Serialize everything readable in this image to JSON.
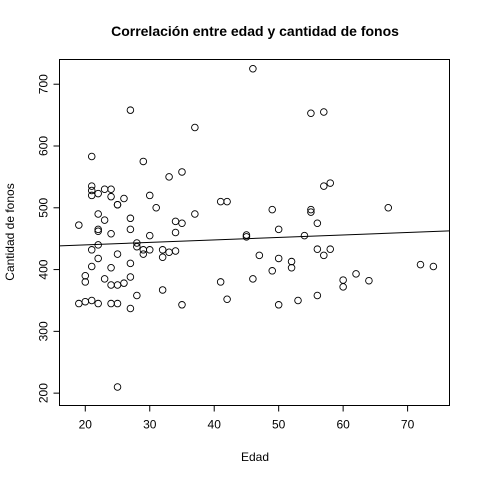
{
  "chart_data": {
    "type": "scatter",
    "title": "Correlación entre edad y cantidad de fonos",
    "xlabel": "Edad",
    "ylabel": "Cantidad de fonos",
    "xlim": [
      16,
      76.5
    ],
    "ylim": [
      180,
      740
    ],
    "x_ticks": [
      20,
      30,
      40,
      50,
      60,
      70
    ],
    "y_ticks": [
      200,
      300,
      400,
      500,
      600,
      700
    ],
    "grid": false,
    "legend": "none",
    "colors": {
      "points": "#000000",
      "line": "#000000",
      "frame": "#000000"
    },
    "points": [
      {
        "x": 19,
        "y": 472
      },
      {
        "x": 19,
        "y": 345
      },
      {
        "x": 20,
        "y": 390
      },
      {
        "x": 20,
        "y": 380
      },
      {
        "x": 20,
        "y": 348
      },
      {
        "x": 21,
        "y": 583
      },
      {
        "x": 21,
        "y": 535
      },
      {
        "x": 21,
        "y": 528
      },
      {
        "x": 21,
        "y": 520
      },
      {
        "x": 21,
        "y": 432
      },
      {
        "x": 21,
        "y": 405
      },
      {
        "x": 21,
        "y": 350
      },
      {
        "x": 22,
        "y": 523
      },
      {
        "x": 22,
        "y": 490
      },
      {
        "x": 22,
        "y": 465
      },
      {
        "x": 22,
        "y": 462
      },
      {
        "x": 22,
        "y": 440
      },
      {
        "x": 22,
        "y": 418
      },
      {
        "x": 22,
        "y": 345
      },
      {
        "x": 23,
        "y": 530
      },
      {
        "x": 23,
        "y": 480
      },
      {
        "x": 23,
        "y": 385
      },
      {
        "x": 24,
        "y": 530
      },
      {
        "x": 24,
        "y": 518
      },
      {
        "x": 24,
        "y": 458
      },
      {
        "x": 24,
        "y": 403
      },
      {
        "x": 24,
        "y": 375
      },
      {
        "x": 24,
        "y": 345
      },
      {
        "x": 25,
        "y": 505
      },
      {
        "x": 25,
        "y": 505
      },
      {
        "x": 25,
        "y": 425
      },
      {
        "x": 25,
        "y": 375
      },
      {
        "x": 25,
        "y": 345
      },
      {
        "x": 25,
        "y": 210
      },
      {
        "x": 26,
        "y": 515
      },
      {
        "x": 26,
        "y": 378
      },
      {
        "x": 27,
        "y": 658
      },
      {
        "x": 27,
        "y": 483
      },
      {
        "x": 27,
        "y": 465
      },
      {
        "x": 27,
        "y": 410
      },
      {
        "x": 27,
        "y": 388
      },
      {
        "x": 27,
        "y": 337
      },
      {
        "x": 28,
        "y": 443
      },
      {
        "x": 28,
        "y": 437
      },
      {
        "x": 28,
        "y": 358
      },
      {
        "x": 29,
        "y": 575
      },
      {
        "x": 29,
        "y": 432
      },
      {
        "x": 29,
        "y": 425
      },
      {
        "x": 30,
        "y": 520
      },
      {
        "x": 30,
        "y": 455
      },
      {
        "x": 30,
        "y": 432
      },
      {
        "x": 31,
        "y": 500
      },
      {
        "x": 32,
        "y": 432
      },
      {
        "x": 32,
        "y": 420
      },
      {
        "x": 32,
        "y": 367
      },
      {
        "x": 33,
        "y": 550
      },
      {
        "x": 33,
        "y": 428
      },
      {
        "x": 34,
        "y": 478
      },
      {
        "x": 34,
        "y": 460
      },
      {
        "x": 34,
        "y": 430
      },
      {
        "x": 35,
        "y": 558
      },
      {
        "x": 35,
        "y": 475
      },
      {
        "x": 35,
        "y": 343
      },
      {
        "x": 37,
        "y": 630
      },
      {
        "x": 37,
        "y": 490
      },
      {
        "x": 41,
        "y": 510
      },
      {
        "x": 41,
        "y": 380
      },
      {
        "x": 42,
        "y": 510
      },
      {
        "x": 42,
        "y": 352
      },
      {
        "x": 45,
        "y": 456
      },
      {
        "x": 45,
        "y": 453
      },
      {
        "x": 46,
        "y": 725
      },
      {
        "x": 46,
        "y": 385
      },
      {
        "x": 47,
        "y": 423
      },
      {
        "x": 49,
        "y": 497
      },
      {
        "x": 49,
        "y": 398
      },
      {
        "x": 50,
        "y": 465
      },
      {
        "x": 50,
        "y": 418
      },
      {
        "x": 50,
        "y": 343
      },
      {
        "x": 52,
        "y": 413
      },
      {
        "x": 52,
        "y": 403
      },
      {
        "x": 53,
        "y": 350
      },
      {
        "x": 54,
        "y": 455
      },
      {
        "x": 55,
        "y": 653
      },
      {
        "x": 55,
        "y": 497
      },
      {
        "x": 55,
        "y": 493
      },
      {
        "x": 56,
        "y": 475
      },
      {
        "x": 56,
        "y": 433
      },
      {
        "x": 56,
        "y": 358
      },
      {
        "x": 57,
        "y": 655
      },
      {
        "x": 57,
        "y": 535
      },
      {
        "x": 57,
        "y": 423
      },
      {
        "x": 58,
        "y": 540
      },
      {
        "x": 58,
        "y": 433
      },
      {
        "x": 60,
        "y": 383
      },
      {
        "x": 60,
        "y": 372
      },
      {
        "x": 62,
        "y": 393
      },
      {
        "x": 64,
        "y": 382
      },
      {
        "x": 67,
        "y": 500
      },
      {
        "x": 72,
        "y": 408
      },
      {
        "x": 74,
        "y": 405
      }
    ],
    "trendline": {
      "intercept": 432,
      "slope": 0.4
    }
  }
}
